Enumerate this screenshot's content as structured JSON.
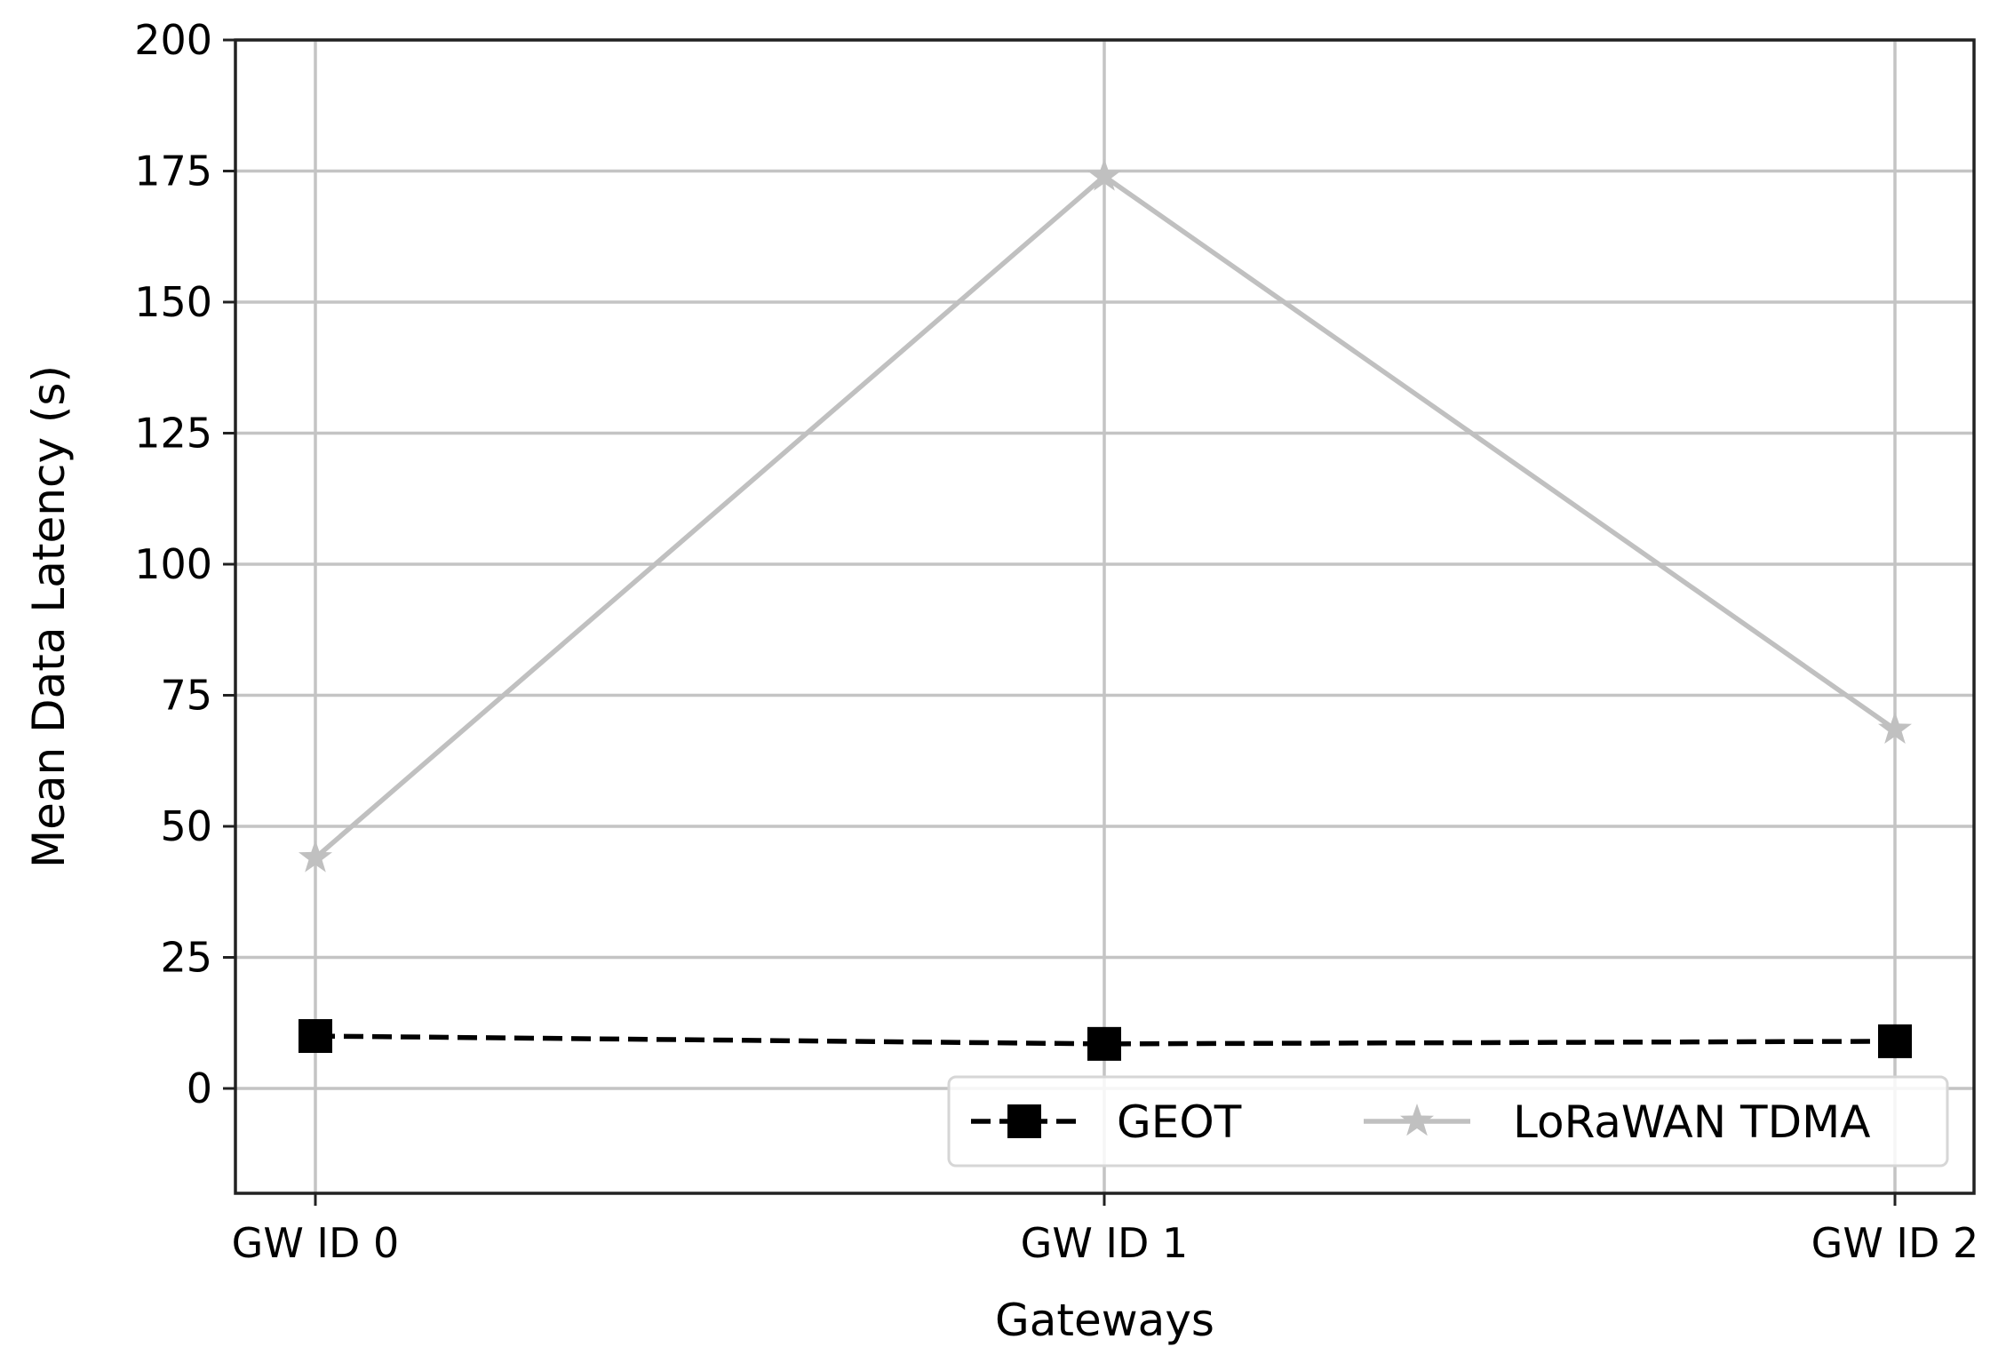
{
  "chart_data": {
    "type": "line",
    "title": "",
    "xlabel": "Gateways",
    "ylabel": "Mean Data Latency (s)",
    "categories": [
      "GW ID 0",
      "GW ID 1",
      "GW ID 2"
    ],
    "ylim": [
      -20,
      200
    ],
    "yticks": [
      0,
      25,
      50,
      75,
      100,
      125,
      150,
      175,
      200
    ],
    "grid": true,
    "legend_position": "lower-right",
    "series": [
      {
        "name": "GEOT",
        "values": [
          10,
          8.5,
          9
        ],
        "color": "#000000",
        "line_style": "dashed",
        "marker": "square"
      },
      {
        "name": "LoRaWAN TDMA",
        "values": [
          44,
          174,
          68.5
        ],
        "color": "#c0c0c0",
        "line_style": "solid",
        "marker": "star"
      }
    ]
  }
}
